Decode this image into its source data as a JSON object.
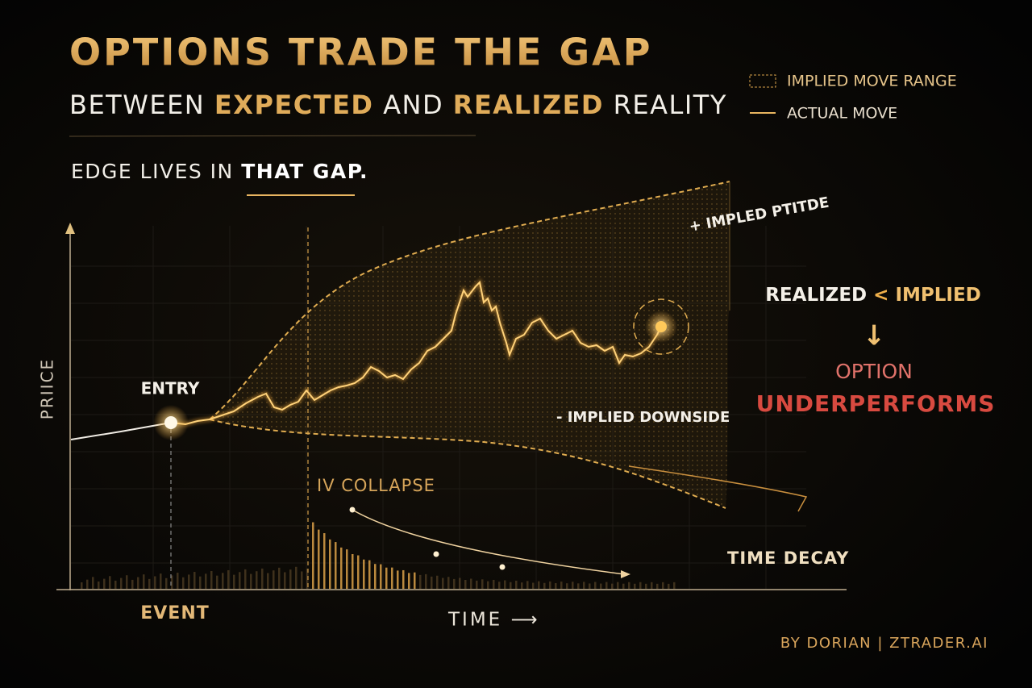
{
  "header": {
    "title": "OPTIONS TRADE THE GAP",
    "subtitle": [
      "BETWEEN",
      "EXPECTED",
      "AND",
      "REALIZED",
      "REALITY"
    ],
    "tagline": [
      "EDGE LIVES IN",
      "THAT GAP."
    ]
  },
  "legend": {
    "items": [
      "IMPLIED MOVE RANGE",
      "ACTUAL MOVE"
    ]
  },
  "diagram": {
    "upside_label": "+ IMPLED PTITDE",
    "downside_label": "- IMPLIED DOWNSIDE",
    "entry_label": "ENTRY",
    "event_label": "EVENT",
    "iv_label": "IV COLLAPSE",
    "decay_label": "TIME DECAY",
    "x_axis_label": "TIME ⟶",
    "y_axis_label": "PRIICE"
  },
  "conclusion": {
    "line1": [
      "REALIZED",
      "<",
      "IMPLIED"
    ],
    "arrow": "↓",
    "line2": "OPTION",
    "line3": "UNDERPERFORMS"
  },
  "footer": {
    "credit": "BY DORIAN | ZTRADER.AI"
  }
}
